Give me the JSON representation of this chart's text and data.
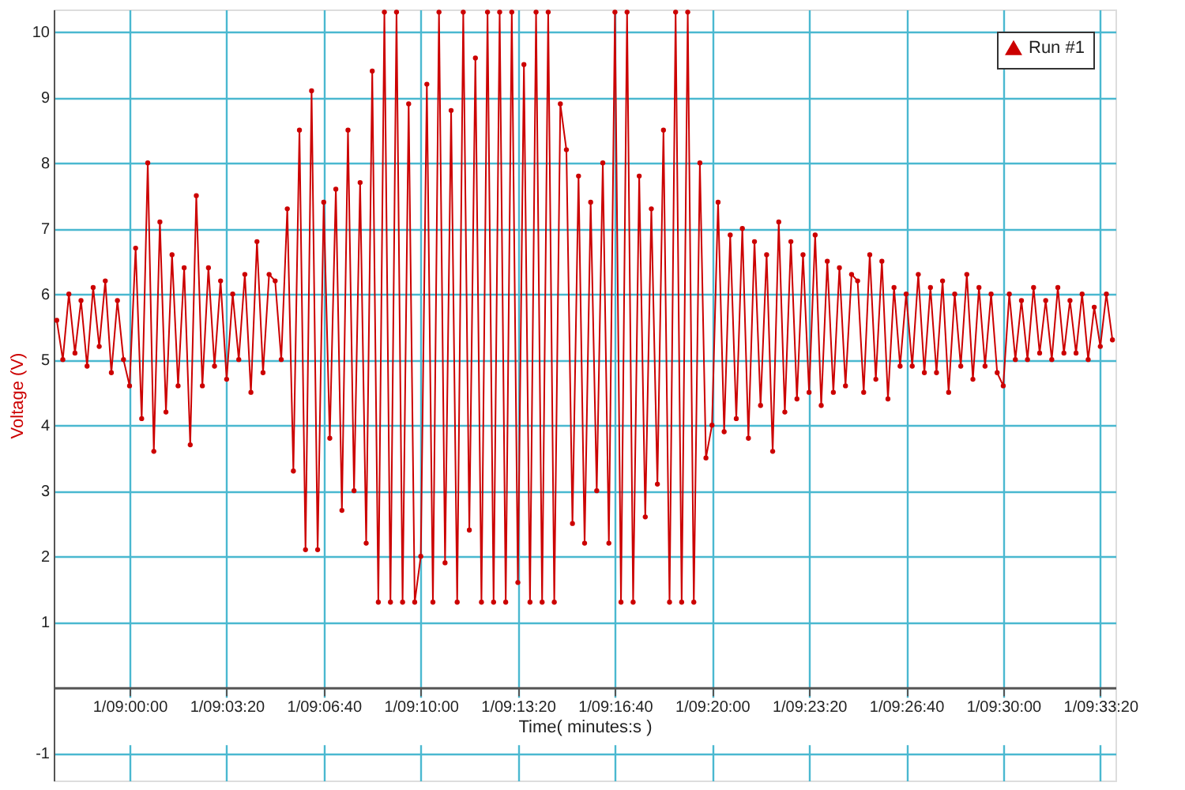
{
  "chart_data": {
    "type": "line",
    "xlabel": "Time( minutes:s )",
    "ylabel": "Voltage (V)",
    "categories": [
      null,
      null,
      null,
      null,
      null,
      null,
      null,
      null,
      null,
      null,
      null,
      null,
      "1/09:00:00",
      null,
      null,
      null,
      null,
      null,
      null,
      null,
      null,
      null,
      null,
      null,
      null,
      null,
      null,
      null,
      "1/09:03:20",
      null,
      null,
      null,
      null,
      null,
      null,
      null,
      null,
      null,
      null,
      null,
      null,
      null,
      null,
      null,
      "1/09:06:40",
      null,
      null,
      null,
      null,
      null,
      null,
      null,
      null,
      null,
      null,
      null,
      null,
      null,
      null,
      null,
      "1/09:10:00",
      null,
      null,
      null,
      null,
      null,
      null,
      null,
      null,
      null,
      null,
      null,
      null,
      null,
      null,
      null,
      "1/09:13:20",
      null,
      null,
      null,
      null,
      null,
      null,
      null,
      null,
      null,
      null,
      null,
      null,
      null,
      null,
      null,
      "1/09:16:40",
      null,
      null,
      null,
      null,
      null,
      null,
      null,
      null,
      null,
      null,
      null,
      null,
      null,
      null,
      null,
      "1/09:20:00",
      null,
      null,
      null,
      null,
      null,
      null,
      null,
      null,
      null,
      null,
      null,
      null,
      null,
      null,
      null,
      "1/09:23:20",
      null,
      null,
      null,
      null,
      null,
      null,
      null,
      null,
      null,
      null,
      null,
      null,
      null,
      null,
      null,
      "1/09:26:40",
      null,
      null,
      null,
      null,
      null,
      null,
      null,
      null,
      null,
      null,
      null,
      null,
      null,
      null,
      null,
      "1/09:30:00",
      null,
      null,
      null,
      null,
      null,
      null,
      null,
      null,
      null,
      null,
      null,
      null,
      null,
      null,
      null,
      "1/09:33:20",
      null,
      null
    ],
    "series": [
      {
        "name": "Run #1",
        "color": "#cc0000",
        "values": [
          5.6,
          5.0,
          6.0,
          5.1,
          5.9,
          4.9,
          6.1,
          5.2,
          6.2,
          4.8,
          5.9,
          5.0,
          4.6,
          6.7,
          4.1,
          8.0,
          3.6,
          7.1,
          4.2,
          6.6,
          4.6,
          6.4,
          3.7,
          7.5,
          4.6,
          6.4,
          4.9,
          6.2,
          4.7,
          6.0,
          5.0,
          6.3,
          4.5,
          6.8,
          4.8,
          6.3,
          6.2,
          5.0,
          7.3,
          3.3,
          8.5,
          2.1,
          9.1,
          2.1,
          7.4,
          3.8,
          7.6,
          2.7,
          8.5,
          3.0,
          7.7,
          2.2,
          9.4,
          1.3,
          10.3,
          1.3,
          10.3,
          1.3,
          8.9,
          1.3,
          2.0,
          9.2,
          1.3,
          10.3,
          1.9,
          8.8,
          1.3,
          10.3,
          2.4,
          9.6,
          1.3,
          10.3,
          1.3,
          10.3,
          1.3,
          10.3,
          1.6,
          9.5,
          1.3,
          10.3,
          1.3,
          10.3,
          1.3,
          8.9,
          8.2,
          2.5,
          7.8,
          2.2,
          7.4,
          3.0,
          8.0,
          2.2,
          10.3,
          1.3,
          10.3,
          1.3,
          7.8,
          2.6,
          7.3,
          3.1,
          8.5,
          1.3,
          10.3,
          1.3,
          10.3,
          1.3,
          8.0,
          3.5,
          4.0,
          7.4,
          3.9,
          6.9,
          4.1,
          7.0,
          3.8,
          6.8,
          4.3,
          6.6,
          3.6,
          7.1,
          4.2,
          6.8,
          4.4,
          6.6,
          4.5,
          6.9,
          4.3,
          6.5,
          4.5,
          6.4,
          4.6,
          6.3,
          6.2,
          4.5,
          6.6,
          4.7,
          6.5,
          4.4,
          6.1,
          4.9,
          6.0,
          4.9,
          6.3,
          4.8,
          6.1,
          4.8,
          6.2,
          4.5,
          6.0,
          4.9,
          6.3,
          4.7,
          6.1,
          4.9,
          6.0,
          4.8,
          4.6,
          6.0,
          5.0,
          5.9,
          5.0,
          6.1,
          5.1,
          5.9,
          5.0,
          6.1,
          5.1,
          5.9,
          5.1,
          6.0,
          5.0,
          5.8,
          5.2,
          6.0,
          5.3
        ]
      }
    ],
    "ylim": [
      -1.42,
      10.34
    ],
    "yticks": [
      -1,
      1,
      2,
      3,
      4,
      5,
      6,
      7,
      8,
      9,
      10
    ],
    "grid": true,
    "legend": "top right",
    "marker": "circle",
    "line_style": "solid"
  }
}
